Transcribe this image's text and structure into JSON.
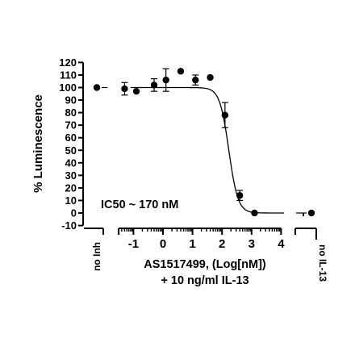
{
  "chart_data": {
    "type": "scatter",
    "ylabel": "% Luminescence",
    "xlabel": "AS1517499, (Log[nM])",
    "xlabel2": "+ 10 ng/ml IL-13",
    "annotation": "IC50 ~ 170 nM",
    "y_ticks": [
      "120",
      "110",
      "100",
      "90",
      "80",
      "70",
      "60",
      "50",
      "40",
      "30",
      "20",
      "10",
      "0",
      "-10"
    ],
    "ylim": [
      -10,
      120
    ],
    "x_ticks": [
      "-1",
      "0",
      "1",
      "2",
      "3",
      "4"
    ],
    "xlim": [
      -1.5,
      4
    ],
    "series": [
      {
        "x": [
          -1.3,
          -0.9,
          -0.3,
          0.1,
          0.6,
          1.1,
          1.6,
          2.1,
          2.6,
          3.1
        ],
        "y": [
          99,
          97,
          102,
          106,
          113,
          106,
          108,
          78,
          14,
          0
        ],
        "err": [
          5,
          2,
          5,
          9,
          2,
          4,
          2,
          10,
          4,
          1
        ]
      }
    ],
    "fit": {
      "top": 100,
      "bottom": 0,
      "log_ic50": 2.23,
      "hill": -2.8
    },
    "controls": [
      {
        "label": "no Inh",
        "y": 100
      },
      {
        "label": "no IL-13",
        "y": 0
      }
    ]
  }
}
